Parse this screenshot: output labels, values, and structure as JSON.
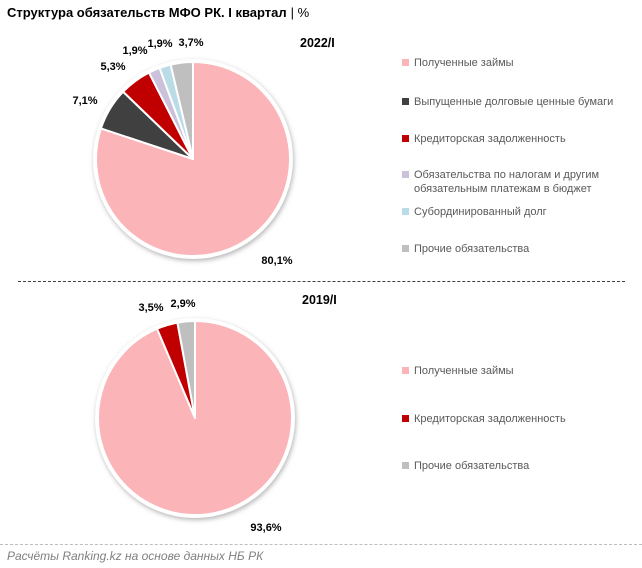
{
  "title": {
    "main": "Структура обязательств МФО РК. I квартал",
    "suffix": "| %"
  },
  "footer": {
    "source": "Расчёты Ranking.kz на основе данных НБ РК"
  },
  "chart_data": [
    {
      "type": "pie",
      "period": "2022/I",
      "categories": [
        "Полученные займы",
        "Выпущенные долговые ценные бумаги",
        "Кредиторская задолженность",
        "Обязательства по налогам и другим обязательным платежам в бюджет",
        "Субординированный долг",
        "Прочие обязательства"
      ],
      "values": [
        80.1,
        7.1,
        5.3,
        1.9,
        1.9,
        3.7
      ],
      "value_labels": [
        "80,1%",
        "7,1%",
        "5,3%",
        "1,9%",
        "1,9%",
        "3,7%"
      ],
      "colors": [
        "#FBB4B8",
        "#404040",
        "#C00000",
        "#CCC1DA",
        "#B9DCE7",
        "#BFBFBF"
      ],
      "legend_position": "right",
      "start_angle_deg": -90,
      "direction": "clockwise"
    },
    {
      "type": "pie",
      "period": "2019/I",
      "categories": [
        "Полученные займы",
        "Кредиторская задолженность",
        "Прочие обязательства"
      ],
      "values": [
        93.6,
        3.5,
        2.9
      ],
      "value_labels": [
        "93,6%",
        "3,5%",
        "2,9%"
      ],
      "colors": [
        "#FBB4B8",
        "#C00000",
        "#BFBFBF"
      ],
      "legend_position": "right",
      "start_angle_deg": -90,
      "direction": "clockwise"
    }
  ]
}
